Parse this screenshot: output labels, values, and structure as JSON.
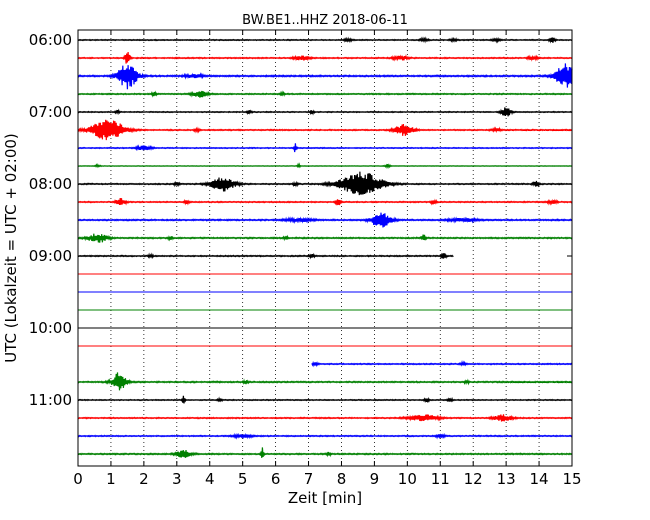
{
  "chart_data": {
    "type": "line",
    "title": "BW.BE1..HHZ 2018-06-11",
    "xlabel": "Zeit  [min]",
    "ylabel": "UTC (Lokalzeit = UTC + 02:00)",
    "xlim": [
      0,
      15
    ],
    "x_ticks": [
      "0",
      "1",
      "2",
      "3",
      "4",
      "5",
      "6",
      "7",
      "8",
      "9",
      "10",
      "11",
      "12",
      "13",
      "14",
      "15"
    ],
    "y_ticks": [
      "06:00",
      "07:00",
      "08:00",
      "09:00",
      "10:00",
      "11:00"
    ],
    "grid": "x-dotted",
    "trace_interval_min": 15,
    "colors": [
      "#000000",
      "#ff0000",
      "#0000ff",
      "#008000"
    ],
    "series": [
      {
        "start": "06:00",
        "noise": 0.05,
        "data_from": 0,
        "data_to": 15,
        "events": [
          [
            8.2,
            0.2,
            0.08
          ],
          [
            10.5,
            0.2,
            0.08
          ],
          [
            11.4,
            0.15,
            0.08
          ],
          [
            12.7,
            0.2,
            0.08
          ],
          [
            14.4,
            0.4,
            0.06
          ]
        ]
      },
      {
        "start": "06:15",
        "noise": 0.06,
        "data_from": 0,
        "data_to": 15,
        "events": [
          [
            1.5,
            0.9,
            0.05
          ],
          [
            6.8,
            0.3,
            0.15
          ],
          [
            9.8,
            0.3,
            0.15
          ],
          [
            13.8,
            0.2,
            0.1
          ]
        ]
      },
      {
        "start": "06:30",
        "noise": 0.08,
        "data_from": 0,
        "data_to": 15,
        "events": [
          [
            1.5,
            1.6,
            0.2
          ],
          [
            3.5,
            0.2,
            0.2
          ],
          [
            14.8,
            1.6,
            0.2
          ]
        ]
      },
      {
        "start": "06:45",
        "noise": 0.06,
        "data_from": 0,
        "data_to": 15,
        "events": [
          [
            2.3,
            0.25,
            0.05
          ],
          [
            3.7,
            0.4,
            0.15
          ],
          [
            6.2,
            0.15,
            0.05
          ]
        ]
      },
      {
        "start": "07:00",
        "noise": 0.05,
        "data_from": 0,
        "data_to": 15,
        "events": [
          [
            1.2,
            0.2,
            0.05
          ],
          [
            5.2,
            0.2,
            0.05
          ],
          [
            7.1,
            0.2,
            0.05
          ],
          [
            13.0,
            0.6,
            0.1
          ]
        ]
      },
      {
        "start": "07:15",
        "noise": 0.06,
        "data_from": 0,
        "data_to": 15,
        "events": [
          [
            0.9,
            1.4,
            0.35
          ],
          [
            3.6,
            0.2,
            0.05
          ],
          [
            9.9,
            0.7,
            0.2
          ],
          [
            12.7,
            0.2,
            0.1
          ]
        ]
      },
      {
        "start": "07:30",
        "noise": 0.05,
        "data_from": 0,
        "data_to": 15,
        "events": [
          [
            2.0,
            0.3,
            0.15
          ],
          [
            6.6,
            0.6,
            0.03
          ]
        ]
      },
      {
        "start": "07:45",
        "noise": 0.03,
        "data_from": 0,
        "data_to": 15,
        "events": [
          [
            0.6,
            0.15,
            0.05
          ],
          [
            6.7,
            0.2,
            0.03
          ],
          [
            9.4,
            0.2,
            0.05
          ]
        ]
      },
      {
        "start": "08:00",
        "noise": 0.06,
        "data_from": 0,
        "data_to": 15,
        "events": [
          [
            3.0,
            0.2,
            0.05
          ],
          [
            4.4,
            0.9,
            0.25
          ],
          [
            6.6,
            0.2,
            0.05
          ],
          [
            8.6,
            1.5,
            0.45
          ],
          [
            13.9,
            0.5,
            0.05
          ]
        ]
      },
      {
        "start": "08:15",
        "noise": 0.06,
        "data_from": 0,
        "data_to": 15,
        "events": [
          [
            1.3,
            0.5,
            0.1
          ],
          [
            3.3,
            0.2,
            0.05
          ],
          [
            7.9,
            0.5,
            0.05
          ],
          [
            10.8,
            0.3,
            0.05
          ],
          [
            14.4,
            0.2,
            0.1
          ]
        ]
      },
      {
        "start": "08:30",
        "noise": 0.07,
        "data_from": 0,
        "data_to": 15,
        "events": [
          [
            6.7,
            0.2,
            0.3
          ],
          [
            9.2,
            1.0,
            0.2
          ],
          [
            11.7,
            0.2,
            0.3
          ]
        ]
      },
      {
        "start": "08:45",
        "noise": 0.07,
        "data_from": 0,
        "data_to": 15,
        "events": [
          [
            0.6,
            0.6,
            0.2
          ],
          [
            2.8,
            0.2,
            0.05
          ],
          [
            6.3,
            0.2,
            0.05
          ],
          [
            10.5,
            0.4,
            0.05
          ]
        ]
      },
      {
        "start": "09:00",
        "noise": 0.06,
        "data_from": 0,
        "data_to": 11.4,
        "events": [
          [
            2.2,
            0.2,
            0.05
          ],
          [
            7.1,
            0.3,
            0.05
          ],
          [
            11.1,
            0.4,
            0.05
          ]
        ]
      },
      {
        "start": "09:15",
        "noise": 0,
        "data_from": 0,
        "data_to": 15,
        "events": []
      },
      {
        "start": "09:30",
        "noise": 0,
        "data_from": 0,
        "data_to": 15,
        "events": []
      },
      {
        "start": "09:45",
        "noise": 0,
        "data_from": 0,
        "data_to": 15,
        "events": []
      },
      {
        "start": "10:00",
        "noise": 0,
        "data_from": 0,
        "data_to": 15,
        "events": []
      },
      {
        "start": "10:15",
        "noise": 0,
        "data_from": 0,
        "data_to": 15,
        "events": []
      },
      {
        "start": "10:30",
        "noise": 0.06,
        "data_from": 7.1,
        "data_to": 15,
        "events": [
          [
            7.2,
            0.2,
            0.05
          ],
          [
            11.7,
            0.2,
            0.05
          ]
        ]
      },
      {
        "start": "10:45",
        "noise": 0.07,
        "data_from": 0,
        "data_to": 15,
        "events": [
          [
            1.25,
            1.2,
            0.15
          ],
          [
            5.1,
            0.2,
            0.05
          ],
          [
            11.8,
            0.2,
            0.05
          ]
        ]
      },
      {
        "start": "11:00",
        "noise": 0.05,
        "data_from": 0,
        "data_to": 15,
        "events": [
          [
            3.2,
            0.6,
            0.03
          ],
          [
            4.3,
            0.2,
            0.05
          ],
          [
            10.6,
            0.3,
            0.05
          ],
          [
            11.3,
            0.2,
            0.05
          ]
        ]
      },
      {
        "start": "11:15",
        "noise": 0.06,
        "data_from": 0,
        "data_to": 15,
        "events": [
          [
            10.5,
            0.4,
            0.3
          ],
          [
            12.9,
            0.4,
            0.2
          ]
        ]
      },
      {
        "start": "11:30",
        "noise": 0.06,
        "data_from": 0,
        "data_to": 15,
        "events": [
          [
            5.0,
            0.2,
            0.2
          ],
          [
            11.0,
            0.2,
            0.1
          ]
        ]
      },
      {
        "start": "11:45",
        "noise": 0.07,
        "data_from": 0,
        "data_to": 15,
        "events": [
          [
            3.2,
            0.5,
            0.15
          ],
          [
            5.6,
            1.0,
            0.03
          ],
          [
            7.6,
            0.2,
            0.05
          ]
        ]
      }
    ]
  }
}
